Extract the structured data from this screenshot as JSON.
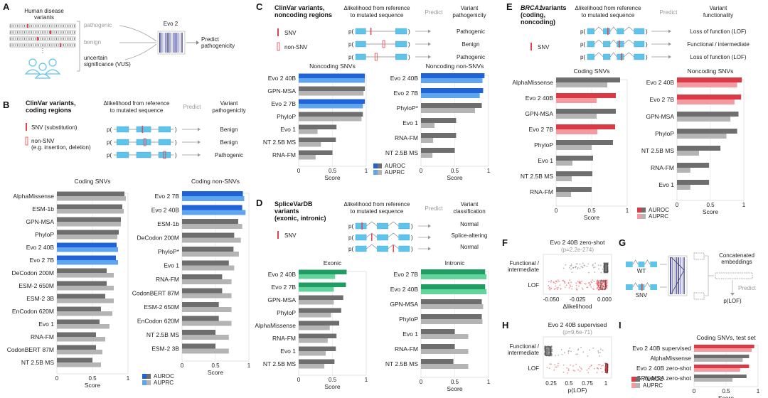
{
  "colors": {
    "auroc": "#6e6e6e",
    "auprc": "#b4b4b4",
    "evo_blue_auroc": "#1f63d6",
    "evo_blue_auprc": "#5fa5ee",
    "evo_green_auroc": "#1f9d62",
    "evo_green_auprc": "#63d39c",
    "evo_red_auroc": "#d93a45",
    "evo_red_auprc": "#f49aa0",
    "seq_blue": "#5fc3ea",
    "mut_red": "#e0444c"
  },
  "panels": {
    "A": {
      "label": "A",
      "human": "Human disease",
      "variants": "variants",
      "pathogenic": "pathogenic",
      "benign": "benign",
      "uncertain1": "uncertain",
      "uncertain2": "significance (VUS)",
      "model": "Evo 2",
      "predict": "Predict",
      "pathogenicity": "pathogenicity"
    },
    "B": {
      "label": "B",
      "title1": "ClinVar variants,",
      "title2": "coding regions",
      "delta1": "Δlikelihood from reference",
      "delta2": "to mutated sequence",
      "predict": "Predict",
      "variant": "Variant",
      "pathogenicity": "pathogenicity",
      "snv": "SNV (substitution)",
      "nonsnv": "non-SNV",
      "nonsnv_ex": "(e.g. insertion, deletion)",
      "outcomes": [
        "Benign",
        "Benign",
        "Pathogenic"
      ]
    },
    "C": {
      "label": "C",
      "title1": "ClinVar variants,",
      "title2": "noncoding regions",
      "delta1": "Δlikelihood from reference",
      "delta2": "to mutated sequence",
      "predict": "Predict",
      "variant": "Variant",
      "pathogenicity": "pathogenicity",
      "snv": "SNV",
      "nonsnv": "non-SNV",
      "outcomes": [
        "Pathogenic",
        "Benign",
        "Pathogenic"
      ]
    },
    "D": {
      "label": "D",
      "title1": "SpliceVarDB",
      "title2": "variants",
      "title3": "(exonic, intronic)",
      "delta1": "Δlikelihood from reference",
      "delta2": "to mutated sequence",
      "predict": "Predict",
      "variant": "Variant",
      "classification": "classification",
      "snv": "SNV",
      "outcomes": [
        "Normal",
        "Splice-altering",
        "Normal"
      ]
    },
    "E": {
      "label": "E",
      "title1": "BRCA1",
      "title1b": " variants",
      "title2": "(coding,",
      "title3": "noncoding)",
      "delta1": "Δlikelihood from reference",
      "delta2": "to mutated sequence",
      "predict": "Predict",
      "variant": "Variant",
      "functionality": "functionality",
      "snv": "SNV",
      "outcomes": [
        "Loss of function (LOF)",
        "Functional / intermediate",
        "Loss of function (LOF)"
      ]
    },
    "F": {
      "label": "F",
      "title": "Evo 2 40B zero-shot",
      "pval": "(p=2.2e-274)",
      "cats": [
        "Functional /",
        "intermediate",
        "LOF"
      ],
      "ticks": [
        "-0.050",
        "-0.025",
        "0.000"
      ],
      "xlabel": "Δlikelihood"
    },
    "G": {
      "label": "G",
      "wt": "WT",
      "snv": "SNV",
      "concat1": "Concatenated",
      "concat2": "embeddings",
      "predict": "Predict",
      "plof": "p(LOF)"
    },
    "H": {
      "label": "H",
      "title": "Evo 2 40B supervised",
      "pval": "(p=9.6e-71)",
      "cats": [
        "Functional /",
        "intermediate",
        "LOF"
      ],
      "ticks": [
        "0.25",
        "0.5",
        "0.75",
        "1"
      ],
      "xlabel": "p(LOF)"
    },
    "I": {
      "label": "I",
      "title": "Coding SNVs, test set"
    }
  },
  "legend": {
    "auroc": "AUROC",
    "auprc": "AUPRC"
  },
  "chart_data": [
    {
      "id": "B1",
      "type": "bar",
      "orientation": "horizontal",
      "title": "Coding SNVs",
      "xlabel": "Score",
      "xlim": [
        0,
        1
      ],
      "xticks": [
        0,
        0.5,
        1
      ],
      "xticklabels": [
        "0",
        "0.5",
        "1"
      ],
      "categories": [
        "AlphaMissense",
        "ESM-1b",
        "GPN-MSA",
        "PhyloP",
        "Evo 2 40B",
        "Evo 2 7B",
        "DeCodon 200M",
        "ESM-2 650M",
        "ESM-2 3B",
        "EnCodon 620M",
        "Evo 1",
        "RNA-FM",
        "CodonBERT 87M",
        "NT 2.5B MS"
      ],
      "highlight": [
        "Evo 2 40B",
        "Evo 2 7B"
      ],
      "highlight_color": "blue",
      "series": [
        {
          "name": "AUROC",
          "values": [
            0.95,
            0.92,
            0.9,
            0.87,
            0.84,
            0.83,
            0.7,
            0.7,
            0.68,
            0.62,
            0.6,
            0.55,
            0.55,
            0.5
          ]
        },
        {
          "name": "AUPRC",
          "values": [
            0.97,
            0.94,
            0.9,
            0.85,
            0.86,
            0.86,
            0.8,
            0.8,
            0.8,
            0.78,
            0.74,
            0.68,
            0.64,
            0.62
          ]
        }
      ]
    },
    {
      "id": "B2",
      "type": "bar",
      "orientation": "horizontal",
      "title": "Coding non-SNVs",
      "xlabel": "Score",
      "xlim": [
        0,
        1
      ],
      "xticks": [
        0,
        0.5,
        1
      ],
      "xticklabels": [
        "0",
        "0.5",
        "1"
      ],
      "categories": [
        "Evo 2 7B",
        "Evo 2 40B",
        "ESM-1b",
        "DeCodon 200M",
        "PhyloP*",
        "Evo 1",
        "RNA-FM",
        "CodonBERT 87M",
        "ESM-2 650M",
        "EnCodon 620M",
        "NT 2.5B MS",
        "ESM-2 3B"
      ],
      "highlight": [
        "Evo 2 7B",
        "Evo 2 40B"
      ],
      "highlight_color": "blue",
      "series": [
        {
          "name": "AUROC",
          "values": [
            0.91,
            0.9,
            0.84,
            0.78,
            0.77,
            0.7,
            0.6,
            0.6,
            0.55,
            0.55,
            0.5,
            0.5
          ]
        },
        {
          "name": "AUPRC",
          "values": [
            0.93,
            0.95,
            0.9,
            0.88,
            0.85,
            0.78,
            0.74,
            0.74,
            0.74,
            0.74,
            0.7,
            0.7
          ]
        }
      ]
    },
    {
      "id": "C1",
      "type": "bar",
      "orientation": "horizontal",
      "title": "Noncoding SNVs",
      "xlabel": "Score",
      "xlim": [
        0,
        1
      ],
      "xticks": [
        0,
        0.5,
        1
      ],
      "xticklabels": [
        "0",
        "0.5",
        "1"
      ],
      "categories": [
        "Evo 2 40B",
        "GPN-MSA",
        "Evo 2 7B",
        "PhyloP",
        "Evo 1",
        "NT 2.5B MS",
        "RNA-FM"
      ],
      "highlight": [
        "Evo 2 40B",
        "Evo 2 7B"
      ],
      "highlight_color": "blue",
      "series": [
        {
          "name": "AUROC",
          "values": [
            0.98,
            0.98,
            0.98,
            0.95,
            0.56,
            0.55,
            0.5
          ]
        },
        {
          "name": "AUPRC",
          "values": [
            0.98,
            0.96,
            0.95,
            0.93,
            0.28,
            0.33,
            0.25
          ]
        }
      ]
    },
    {
      "id": "C2",
      "type": "bar",
      "orientation": "horizontal",
      "title": "Noncoding non-SNVs",
      "xlabel": "Score",
      "xlim": [
        0,
        1
      ],
      "xticks": [
        0,
        0.5,
        1
      ],
      "xticklabels": [
        "0",
        "0.5",
        "1"
      ],
      "categories": [
        "Evo 2 40B",
        "Evo 2 7B",
        "PhyloP*",
        "Evo 1",
        "RNA-FM",
        "NT 2.5B MS"
      ],
      "highlight": [
        "Evo 2 40B",
        "Evo 2 7B"
      ],
      "highlight_color": "blue",
      "series": [
        {
          "name": "AUROC",
          "values": [
            0.94,
            0.92,
            0.9,
            0.52,
            0.52,
            0.5
          ]
        },
        {
          "name": "AUPRC",
          "values": [
            0.91,
            0.87,
            0.8,
            0.2,
            0.18,
            0.17
          ]
        }
      ]
    },
    {
      "id": "D1",
      "type": "bar",
      "orientation": "horizontal",
      "title": "Exonic",
      "xlabel": "Score",
      "xlim": [
        0,
        1
      ],
      "xticks": [
        0,
        0.5,
        1
      ],
      "xticklabels": [
        "0",
        "0.5",
        "1"
      ],
      "categories": [
        "Evo 2 40B",
        "Evo 2 7B",
        "GPN-MSA",
        "PhyloP",
        "AlphaMissense",
        "RNA-FM",
        "Evo 1",
        "NT 2.5B MS"
      ],
      "highlight": [
        "Evo 2 40B",
        "Evo 2 7B"
      ],
      "highlight_color": "green",
      "series": [
        {
          "name": "AUROC",
          "values": [
            0.71,
            0.7,
            0.66,
            0.63,
            0.6,
            0.56,
            0.55,
            0.53
          ]
        },
        {
          "name": "AUPRC",
          "values": [
            0.54,
            0.52,
            0.52,
            0.48,
            0.46,
            0.43,
            0.4,
            0.38
          ]
        }
      ]
    },
    {
      "id": "D2",
      "type": "bar",
      "orientation": "horizontal",
      "title": "Intronic",
      "xlabel": "Score",
      "xlim": [
        0,
        1
      ],
      "xticks": [
        0,
        0.5,
        1
      ],
      "xticklabels": [
        "0",
        "0.5",
        "1"
      ],
      "categories": [
        "Evo 2 7B",
        "Evo 2 40B",
        "GPN-MSA",
        "PhyloP",
        "Evo 1",
        "RNA-FM",
        "NT 2.5B MS"
      ],
      "highlight": [
        "Evo 2 7B",
        "Evo 2 40B"
      ],
      "highlight_color": "green",
      "series": [
        {
          "name": "AUROC",
          "values": [
            0.95,
            0.95,
            0.9,
            0.9,
            0.5,
            0.5,
            0.48
          ]
        },
        {
          "name": "AUPRC",
          "values": [
            0.97,
            0.97,
            0.92,
            0.91,
            0.7,
            0.7,
            0.7
          ]
        }
      ]
    },
    {
      "id": "E1",
      "type": "bar",
      "orientation": "horizontal",
      "title": "Coding SNVs",
      "xlabel": "Score",
      "xlim": [
        0,
        1
      ],
      "xticks": [
        0,
        0.5,
        1
      ],
      "xticklabels": [
        "0",
        "0.5",
        "1"
      ],
      "categories": [
        "AlphaMissense",
        "Evo 2 40B",
        "GPN-MSA",
        "Evo 2 7B",
        "PhyloP",
        "Evo 1",
        "NT 2.5B MS",
        "RNA-FM"
      ],
      "highlight": [
        "Evo 2 40B",
        "Evo 2 7B"
      ],
      "highlight_color": "red",
      "series": [
        {
          "name": "AUROC",
          "values": [
            0.9,
            0.84,
            0.84,
            0.83,
            0.8,
            0.52,
            0.51,
            0.5
          ]
        },
        {
          "name": "AUPRC",
          "values": [
            0.72,
            0.57,
            0.57,
            0.58,
            0.5,
            0.23,
            0.22,
            0.21
          ]
        }
      ]
    },
    {
      "id": "E2",
      "type": "bar",
      "orientation": "horizontal",
      "title": "Noncoding SNVs",
      "xlabel": "Score",
      "xlim": [
        0,
        1
      ],
      "xticks": [
        0,
        0.5,
        1
      ],
      "xticklabels": [
        "0",
        "0.5",
        "1"
      ],
      "categories": [
        "Evo 2 40B",
        "Evo 2 7B",
        "GPN-MSA",
        "PhyloP",
        "NT 2.5B MS",
        "RNA-FM",
        "Evo 1"
      ],
      "highlight": [
        "Evo 2 40B",
        "Evo 2 7B"
      ],
      "highlight_color": "red",
      "series": [
        {
          "name": "AUROC",
          "values": [
            0.97,
            0.96,
            0.92,
            0.9,
            0.65,
            0.48,
            0.48
          ]
        },
        {
          "name": "AUPRC",
          "values": [
            0.9,
            0.86,
            0.8,
            0.74,
            0.33,
            0.2,
            0.2
          ]
        }
      ]
    },
    {
      "id": "I",
      "type": "bar",
      "orientation": "horizontal",
      "title": "Coding SNVs, test set",
      "xlabel": "Score",
      "xlim": [
        0,
        1
      ],
      "xticks": [
        0,
        0.5,
        1
      ],
      "xticklabels": [
        "0",
        "0.5",
        "1"
      ],
      "categories": [
        "Evo 2 40B supervised",
        "AlphaMissense",
        "Evo 2 40B zero-shot",
        "GPN-MSA zero-shot"
      ],
      "highlight": [
        "Evo 2 40B supervised",
        "Evo 2 40B zero-shot"
      ],
      "highlight_color": "red",
      "series": [
        {
          "name": "AUROC",
          "values": [
            0.94,
            0.86,
            0.86,
            0.82
          ]
        },
        {
          "name": "AUPRC",
          "values": [
            0.9,
            0.76,
            0.72,
            0.6
          ]
        }
      ]
    },
    {
      "id": "F",
      "type": "scatter",
      "title": "Evo 2 40B zero-shot",
      "xlabel": "Δlikelihood",
      "xlim": [
        -0.065,
        0.005
      ],
      "xticks": [
        -0.05,
        -0.025,
        0
      ],
      "categories": [
        "Functional / intermediate",
        "LOF"
      ]
    },
    {
      "id": "H",
      "type": "scatter",
      "title": "Evo 2 40B supervised",
      "xlabel": "p(LOF)",
      "xlim": [
        0.1,
        1.05
      ],
      "xticks": [
        0.25,
        0.5,
        0.75,
        1
      ],
      "categories": [
        "Functional / intermediate",
        "LOF"
      ]
    }
  ]
}
